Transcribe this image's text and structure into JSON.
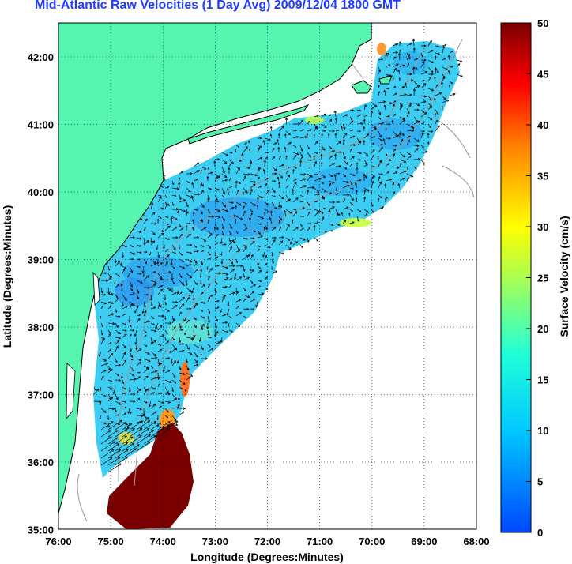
{
  "title": "Mid-Atlantic Raw Velocities (1 Day Avg) 2009/12/04 1800 GMT",
  "axes": {
    "xlabel": "Longitude (Degrees:Minutes)",
    "ylabel": "Latitude (Degrees:Minutes)",
    "xticks": [
      "76:00",
      "75:00",
      "74:00",
      "73:00",
      "72:00",
      "71:00",
      "70:00",
      "69:00",
      "68:00"
    ],
    "yticks": [
      "42:00",
      "41:00",
      "40:00",
      "39:00",
      "38:00",
      "37:00",
      "36:00",
      "35:00"
    ],
    "lon_range": [
      -76,
      -68
    ],
    "lat_range": [
      35,
      42.5
    ],
    "grid": "dotted"
  },
  "colorbar": {
    "label": "Surface Velocity (cm/s)",
    "ticks": [
      "50",
      "45",
      "40",
      "35",
      "30",
      "25",
      "20",
      "15",
      "10",
      "5",
      "0"
    ],
    "range": [
      0,
      50
    ],
    "colormap": "jet"
  },
  "colors": {
    "land": "#55f5b0",
    "coast": "#000000",
    "bathymetry": "#9a9a9a",
    "title": "#1f3cff"
  }
}
